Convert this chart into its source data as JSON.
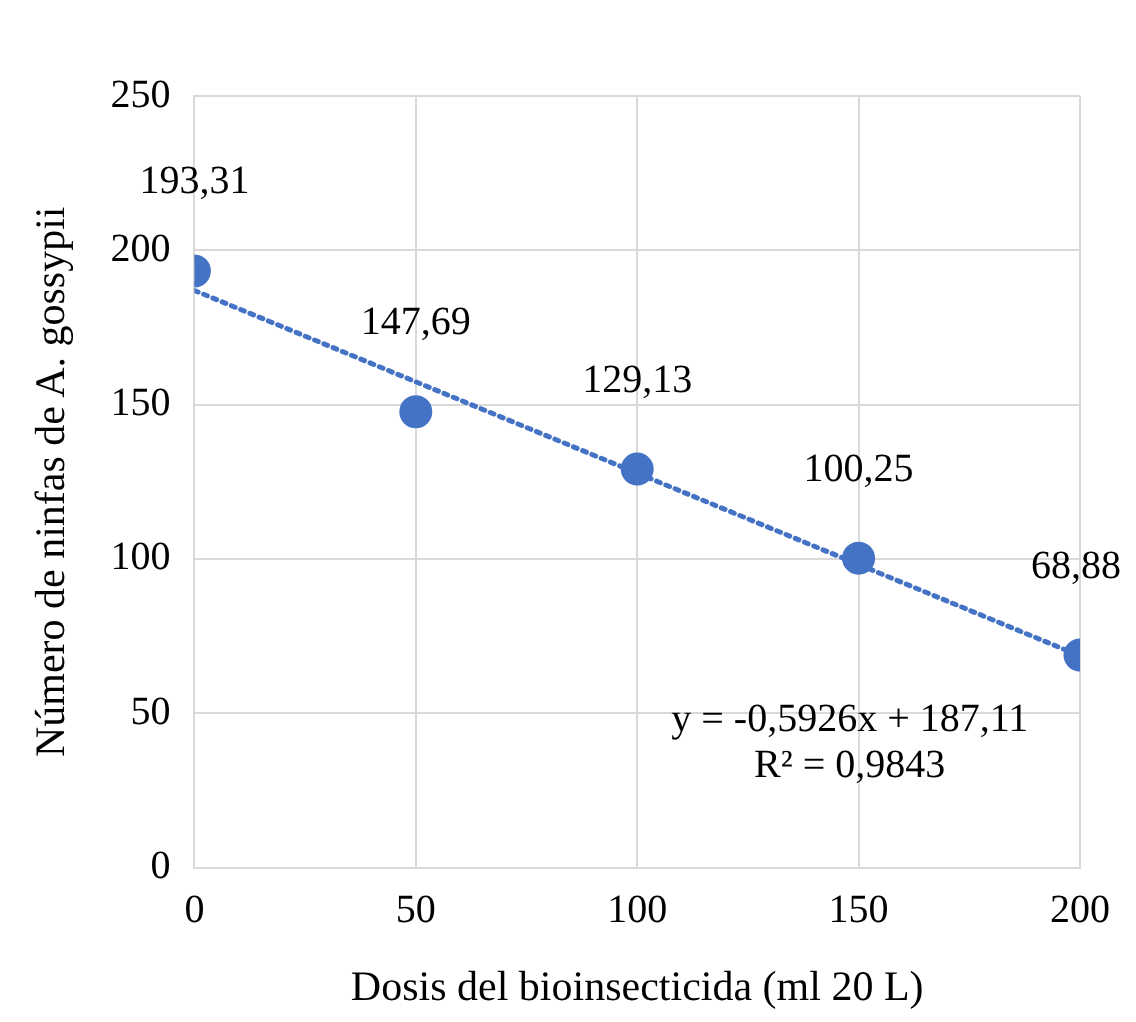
{
  "chart_data": {
    "type": "scatter",
    "xlabel": "Dosis del bioinsecticida (ml 20 L)",
    "ylabel": "Número de ninfas de A. gossypii",
    "x": [
      0,
      50,
      100,
      150,
      200
    ],
    "series": [
      {
        "type": "scatter",
        "color": "#4472c4",
        "values": [
          193.31,
          147.69,
          129.13,
          100.25,
          68.88
        ],
        "value_labels": [
          "193,31",
          "147,69",
          "129,13",
          "100,25",
          "68,88"
        ],
        "marker": "circle"
      },
      {
        "type": "line",
        "color": "#4472c4",
        "x": [
          0,
          200
        ],
        "values": [
          187,
          68.6
        ],
        "line_style": "dotted",
        "marker": "none"
      }
    ],
    "annotations": [
      "y = -0,5926x + 187,11",
      "R² = 0,9843"
    ],
    "xlim": [
      0,
      200
    ],
    "xticks": [
      0,
      50,
      100,
      150,
      200
    ],
    "ylim": [
      0,
      250
    ],
    "yticks": [
      0,
      50,
      100,
      150,
      200,
      250
    ],
    "grid": true,
    "legend": false
  }
}
